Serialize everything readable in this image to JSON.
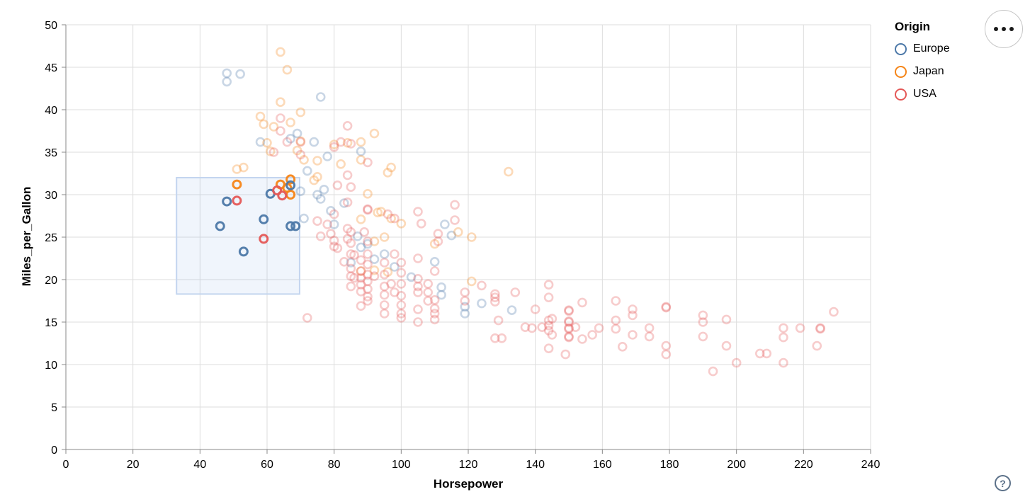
{
  "legend": {
    "title": "Origin",
    "items": [
      {
        "label": "Europe",
        "color": "#4c78a8"
      },
      {
        "label": "Japan",
        "color": "#f58518"
      },
      {
        "label": "USA",
        "color": "#e45756"
      }
    ]
  },
  "toolbar": {
    "menu_icon": "more-options",
    "help_glyph": "?"
  },
  "chart_data": {
    "type": "scatter",
    "title": "",
    "xlabel": "Horsepower",
    "ylabel": "Miles_per_Gallon",
    "xlim": [
      0,
      240
    ],
    "ylim": [
      0,
      50
    ],
    "xticks": [
      0,
      20,
      40,
      60,
      80,
      100,
      120,
      140,
      160,
      180,
      200,
      220,
      240
    ],
    "yticks": [
      0,
      5,
      10,
      15,
      20,
      25,
      30,
      35,
      40,
      45,
      50
    ],
    "grid": true,
    "legend_position": "top-right",
    "colors": {
      "Europe": "#4c78a8",
      "Japan": "#f58518",
      "USA": "#e45756"
    },
    "unselected_opacity": 0.3,
    "brush_extent": {
      "x": [
        33,
        69.7
      ],
      "y": [
        18.3,
        32
      ]
    },
    "brush_fill": "rgba(130,170,230,0.12)",
    "brush_stroke": "#c3d5ef",
    "series": [
      {
        "name": "Europe",
        "points": [
          [
            48,
            44.3
          ],
          [
            52,
            44.2
          ],
          [
            48,
            43.3
          ],
          [
            76,
            41.5
          ],
          [
            69,
            37.2
          ],
          [
            67,
            36.6
          ],
          [
            58,
            36.2
          ],
          [
            74,
            36.2
          ],
          [
            78,
            34.5
          ],
          [
            88,
            35.1
          ],
          [
            72,
            32.8
          ],
          [
            77,
            30.6
          ],
          [
            83,
            29
          ],
          [
            79,
            28.1
          ],
          [
            70,
            30.4
          ],
          [
            75,
            30
          ],
          [
            76,
            29.5
          ],
          [
            71,
            27.2
          ],
          [
            80,
            26.5
          ],
          [
            87,
            25.1
          ],
          [
            90,
            24.2
          ],
          [
            88,
            23.8
          ],
          [
            95,
            23
          ],
          [
            92,
            22.4
          ],
          [
            113,
            26.5
          ],
          [
            115,
            25.2
          ],
          [
            110,
            22.1
          ],
          [
            98,
            21.5
          ],
          [
            103,
            20.3
          ],
          [
            112,
            19.1
          ],
          [
            112,
            18.2
          ],
          [
            119,
            16.8
          ],
          [
            119,
            16
          ],
          [
            124,
            17.2
          ],
          [
            133,
            16.4
          ],
          [
            85,
            22
          ]
        ]
      },
      {
        "name": "Japan",
        "points": [
          [
            64,
            46.8
          ],
          [
            66,
            44.7
          ],
          [
            64,
            40.9
          ],
          [
            70,
            39.7
          ],
          [
            58,
            39.2
          ],
          [
            59,
            38.3
          ],
          [
            62,
            38
          ],
          [
            67,
            38.5
          ],
          [
            60,
            36.1
          ],
          [
            61,
            35.1
          ],
          [
            70,
            36.3
          ],
          [
            71,
            34.1
          ],
          [
            75,
            34
          ],
          [
            75,
            32.1
          ],
          [
            74,
            31.7
          ],
          [
            69,
            35.2
          ],
          [
            80,
            35.9
          ],
          [
            84,
            36.1
          ],
          [
            92,
            37.2
          ],
          [
            88,
            36.2
          ],
          [
            88,
            34.1
          ],
          [
            82,
            33.6
          ],
          [
            53,
            33.2
          ],
          [
            51,
            33
          ],
          [
            97,
            33.2
          ],
          [
            96,
            32.6
          ],
          [
            132,
            32.7
          ],
          [
            90,
            30.1
          ],
          [
            94,
            28
          ],
          [
            93,
            27.9
          ],
          [
            97,
            27.2
          ],
          [
            88,
            27.1
          ],
          [
            100,
            26.6
          ],
          [
            117,
            25.6
          ],
          [
            121,
            25
          ],
          [
            110,
            24.2
          ],
          [
            95,
            25
          ],
          [
            92,
            24.5
          ],
          [
            88,
            21
          ],
          [
            92,
            21.1
          ],
          [
            96,
            20.9
          ],
          [
            121,
            19.8
          ]
        ]
      },
      {
        "name": "USA",
        "points": [
          [
            64,
            39
          ],
          [
            64,
            37.5
          ],
          [
            66,
            36.2
          ],
          [
            62,
            35
          ],
          [
            70,
            34.7
          ],
          [
            70,
            36.2
          ],
          [
            84,
            38.1
          ],
          [
            85,
            36
          ],
          [
            82,
            36.2
          ],
          [
            84,
            32.3
          ],
          [
            90,
            33.8
          ],
          [
            80,
            35.6
          ],
          [
            81,
            31.1
          ],
          [
            85,
            30.9
          ],
          [
            84,
            29.1
          ],
          [
            80,
            27.7
          ],
          [
            90,
            28.3
          ],
          [
            90,
            28.2
          ],
          [
            96,
            27.7
          ],
          [
            98,
            27.2
          ],
          [
            105,
            28
          ],
          [
            116,
            28.8
          ],
          [
            106,
            26.6
          ],
          [
            116,
            27
          ],
          [
            89,
            25.6
          ],
          [
            111,
            25.4
          ],
          [
            111,
            24.5
          ],
          [
            75,
            26.9
          ],
          [
            76,
            25.1
          ],
          [
            78,
            26.5
          ],
          [
            79,
            25.4
          ],
          [
            80,
            24.6
          ],
          [
            80,
            23.9
          ],
          [
            81,
            23.7
          ],
          [
            83,
            22.1
          ],
          [
            84,
            26
          ],
          [
            84,
            24.8
          ],
          [
            85,
            25.6
          ],
          [
            85,
            24.3
          ],
          [
            85,
            23
          ],
          [
            86,
            22.9
          ],
          [
            88,
            22.3
          ],
          [
            90,
            24.5
          ],
          [
            90,
            23
          ],
          [
            95,
            22
          ],
          [
            100,
            22
          ],
          [
            98,
            23
          ],
          [
            105,
            22.5
          ],
          [
            110,
            21
          ],
          [
            85,
            21.3
          ],
          [
            85,
            20.4
          ],
          [
            85,
            19.2
          ],
          [
            86,
            20.2
          ],
          [
            88,
            21
          ],
          [
            88,
            20.2
          ],
          [
            88,
            19.4
          ],
          [
            88,
            18.6
          ],
          [
            88,
            16.9
          ],
          [
            90,
            21.8
          ],
          [
            90,
            20.6
          ],
          [
            90,
            19.8
          ],
          [
            90,
            18.9
          ],
          [
            90,
            18
          ],
          [
            90,
            17.5
          ],
          [
            92,
            20.4
          ],
          [
            95,
            20.6
          ],
          [
            95,
            19.2
          ],
          [
            95,
            18.2
          ],
          [
            95,
            17
          ],
          [
            95,
            16
          ],
          [
            97,
            19.5
          ],
          [
            98,
            18.5
          ],
          [
            100,
            20.8
          ],
          [
            100,
            19.5
          ],
          [
            100,
            18.1
          ],
          [
            100,
            17
          ],
          [
            100,
            16
          ],
          [
            100,
            15.5
          ],
          [
            105,
            20.1
          ],
          [
            105,
            19.2
          ],
          [
            105,
            18.5
          ],
          [
            105,
            16.5
          ],
          [
            105,
            15
          ],
          [
            108,
            19.5
          ],
          [
            108,
            18.5
          ],
          [
            108,
            17.5
          ],
          [
            110,
            17.6
          ],
          [
            110,
            16.6
          ],
          [
            110,
            16
          ],
          [
            110,
            15.3
          ],
          [
            72,
            15.5
          ],
          [
            124,
            19.3
          ],
          [
            119,
            18.5
          ],
          [
            119,
            17.5
          ],
          [
            128,
            17.9
          ],
          [
            128,
            18.3
          ],
          [
            128,
            17.4
          ],
          [
            134,
            18.5
          ],
          [
            129,
            15.2
          ],
          [
            128,
            13.1
          ],
          [
            130,
            13.1
          ],
          [
            137,
            14.4
          ],
          [
            139,
            14.3
          ],
          [
            140,
            16.5
          ],
          [
            142,
            14.4
          ],
          [
            144,
            19.4
          ],
          [
            144,
            17.9
          ],
          [
            144,
            15.2
          ],
          [
            144,
            14.6
          ],
          [
            144,
            14
          ],
          [
            144,
            11.9
          ],
          [
            145,
            15.4
          ],
          [
            145,
            13.5
          ],
          [
            149,
            11.2
          ],
          [
            150,
            16.4
          ],
          [
            150,
            16.3
          ],
          [
            150,
            15.1
          ],
          [
            150,
            15
          ],
          [
            150,
            14.3
          ],
          [
            150,
            14.2
          ],
          [
            150,
            13.3
          ],
          [
            150,
            13.2
          ],
          [
            152,
            14.4
          ],
          [
            154,
            17.3
          ],
          [
            154,
            13
          ],
          [
            157,
            13.5
          ],
          [
            159,
            14.3
          ],
          [
            164,
            17.5
          ],
          [
            164,
            15.2
          ],
          [
            164,
            14.2
          ],
          [
            166,
            12.1
          ],
          [
            169,
            16.5
          ],
          [
            169,
            15.8
          ],
          [
            169,
            13.5
          ],
          [
            174,
            14.3
          ],
          [
            174,
            13.3
          ],
          [
            179,
            16.8
          ],
          [
            179,
            16.7
          ],
          [
            179,
            12.2
          ],
          [
            179,
            11.2
          ],
          [
            190,
            15.8
          ],
          [
            190,
            15
          ],
          [
            190,
            13.3
          ],
          [
            193,
            9.2
          ],
          [
            197,
            15.3
          ],
          [
            197,
            12.2
          ],
          [
            200,
            10.2
          ],
          [
            207,
            11.3
          ],
          [
            209,
            11.3
          ],
          [
            214,
            14.3
          ],
          [
            214,
            13.2
          ],
          [
            214,
            10.2
          ],
          [
            219,
            14.3
          ],
          [
            225,
            14.3
          ],
          [
            225,
            14.2
          ],
          [
            224,
            12.2
          ],
          [
            229,
            16.2
          ]
        ]
      }
    ],
    "selected_points": [
      {
        "origin": "Japan",
        "x": 67,
        "y": 31.8
      },
      {
        "origin": "Japan",
        "x": 64,
        "y": 31.2
      },
      {
        "origin": "Japan",
        "x": 66,
        "y": 30.8
      },
      {
        "origin": "Japan",
        "x": 67,
        "y": 30
      },
      {
        "origin": "Japan",
        "x": 51,
        "y": 31.2
      },
      {
        "origin": "Europe",
        "x": 67,
        "y": 31.1
      },
      {
        "origin": "Europe",
        "x": 61,
        "y": 30.1
      },
      {
        "origin": "Europe",
        "x": 48,
        "y": 29.2
      },
      {
        "origin": "Europe",
        "x": 59,
        "y": 27.1
      },
      {
        "origin": "Europe",
        "x": 46,
        "y": 26.3
      },
      {
        "origin": "Europe",
        "x": 67,
        "y": 26.3
      },
      {
        "origin": "Europe",
        "x": 68.5,
        "y": 26.3
      },
      {
        "origin": "Europe",
        "x": 53,
        "y": 23.3
      },
      {
        "origin": "USA",
        "x": 63,
        "y": 30.5
      },
      {
        "origin": "USA",
        "x": 64.5,
        "y": 29.9
      },
      {
        "origin": "USA",
        "x": 51,
        "y": 29.3
      },
      {
        "origin": "USA",
        "x": 59,
        "y": 24.8
      }
    ]
  }
}
